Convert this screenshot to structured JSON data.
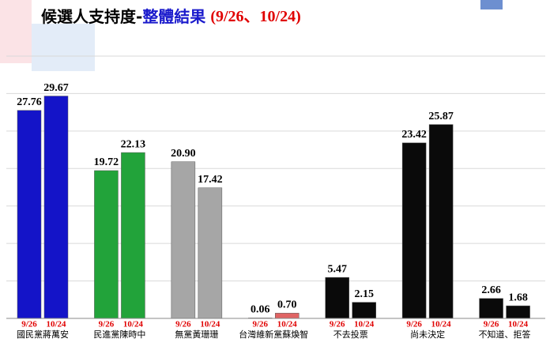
{
  "chart_data": {
    "type": "bar",
    "title": [
      "候選人支持度-",
      "整體結果",
      "(9/26、10/24)"
    ],
    "categories": [
      "國民黨蔣萬安",
      "民進黨陳時中",
      "無黨黃珊珊",
      "台灣維新黨蘇煥智",
      "不去投票",
      "尚未決定",
      "不知道、拒答"
    ],
    "colors": [
      "#1414c8",
      "#22a33a",
      "#a6a6a6",
      "#e06464",
      "#0a0a0a",
      "#0a0a0a",
      "#0a0a0a"
    ],
    "series": [
      {
        "name": "9/26",
        "values": [
          27.76,
          19.72,
          20.9,
          0.06,
          5.47,
          23.42,
          2.66
        ],
        "value_labels": [
          "27.76",
          "19.72",
          "20.90",
          "0.06",
          "5.47",
          "23.42",
          "2.66"
        ]
      },
      {
        "name": "10/24",
        "values": [
          29.67,
          22.13,
          17.42,
          0.7,
          2.15,
          25.87,
          1.68
        ],
        "value_labels": [
          "29.67",
          "22.13",
          "17.42",
          "0.70",
          "2.15",
          "25.87",
          "1.68"
        ]
      }
    ],
    "ylim": [
      0,
      35
    ],
    "yticks": [
      0,
      5,
      10,
      15,
      20,
      25,
      30,
      35
    ],
    "grid": true
  }
}
